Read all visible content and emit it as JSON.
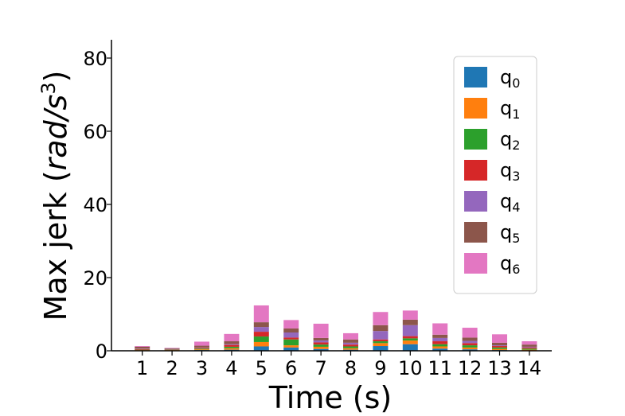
{
  "chart_data": {
    "type": "bar",
    "stacked": true,
    "xlabel": "Time (s)",
    "ylabel": "Max jerk (rad/s³)",
    "ylabel_parts": {
      "main": "Max jerk (",
      "unit_num": "rad",
      "unit_sep": "/",
      "unit_den": "s",
      "unit_exp": "3",
      "close": ")"
    },
    "ylim": [
      0,
      85
    ],
    "yticks": [
      0,
      20,
      40,
      60,
      80
    ],
    "categories": [
      "1",
      "2",
      "3",
      "4",
      "5",
      "6",
      "7",
      "8",
      "9",
      "10",
      "11",
      "12",
      "13",
      "14"
    ],
    "legend_position": "top-right",
    "grid": false,
    "series": [
      {
        "name": "q0",
        "base": "q",
        "sub": "0",
        "color": "#1f77b4",
        "values": [
          0.1,
          0.1,
          0.2,
          0.3,
          1.2,
          0.9,
          0.5,
          0.3,
          1.3,
          1.8,
          0.6,
          0.4,
          0.2,
          0.1
        ]
      },
      {
        "name": "q1",
        "base": "q",
        "sub": "1",
        "color": "#ff7f0e",
        "values": [
          0.1,
          0.1,
          0.2,
          0.4,
          1.2,
          0.6,
          0.6,
          0.4,
          0.8,
          1.0,
          0.6,
          0.5,
          0.3,
          0.2
        ]
      },
      {
        "name": "q2",
        "base": "q",
        "sub": "2",
        "color": "#2ca02c",
        "values": [
          0.1,
          0.1,
          0.2,
          0.4,
          1.5,
          1.6,
          0.6,
          0.5,
          0.5,
          0.6,
          0.6,
          0.6,
          0.4,
          0.3
        ]
      },
      {
        "name": "q3",
        "base": "q",
        "sub": "3",
        "color": "#d62728",
        "values": [
          0.2,
          0.1,
          0.2,
          0.5,
          1.3,
          0.5,
          0.6,
          0.5,
          0.5,
          0.6,
          0.8,
          0.6,
          0.4,
          0.3
        ]
      },
      {
        "name": "q4",
        "base": "q",
        "sub": "4",
        "color": "#9467bd",
        "values": [
          0.1,
          0.1,
          0.1,
          0.2,
          1.3,
          1.4,
          0.5,
          0.5,
          2.3,
          3.0,
          0.9,
          0.6,
          0.2,
          0.2
        ]
      },
      {
        "name": "q5",
        "base": "q",
        "sub": "5",
        "color": "#8c564b",
        "values": [
          0.5,
          0.2,
          0.5,
          0.8,
          1.3,
          1.1,
          0.7,
          0.9,
          1.6,
          1.5,
          0.9,
          0.9,
          0.7,
          0.6
        ]
      },
      {
        "name": "q6",
        "base": "q",
        "sub": "6",
        "color": "#e377c2",
        "values": [
          0.2,
          0.1,
          1.1,
          2.0,
          4.6,
          2.3,
          3.9,
          1.7,
          3.6,
          2.5,
          3.1,
          2.7,
          2.3,
          0.9
        ]
      }
    ]
  }
}
